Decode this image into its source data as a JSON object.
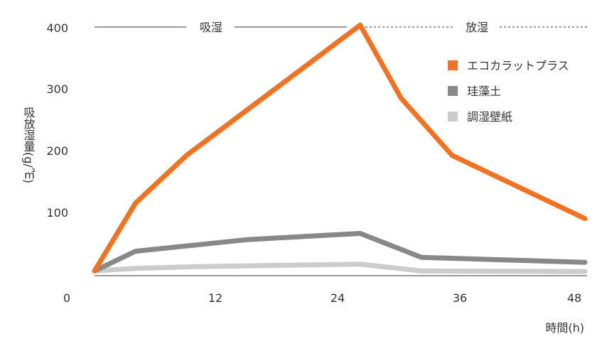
{
  "chart_data": {
    "type": "line",
    "xlabel": "時間(h)",
    "ylabel": "吸放湿量(g/㎡)",
    "x_ticks": [
      "0",
      "12",
      "24",
      "36",
      "48"
    ],
    "y_ticks": [
      "400",
      "300",
      "200",
      "100"
    ],
    "xlim": [
      0,
      48
    ],
    "ylim": [
      0,
      400
    ],
    "grid": false,
    "legend_position": "top-right",
    "phases": [
      {
        "label": "吸湿",
        "x_start": 0,
        "x_end": 26,
        "style": "solid"
      },
      {
        "label": "放湿",
        "x_start": 26,
        "x_end": 48,
        "style": "dashed"
      }
    ],
    "series": [
      {
        "name": "エコカラットプラス",
        "color": "#F07222",
        "x": [
          0,
          4,
          9,
          26,
          30,
          35,
          48
        ],
        "y": [
          2,
          112,
          190,
          402,
          283,
          190,
          87
        ]
      },
      {
        "name": "珪藻土",
        "color": "#888888",
        "x": [
          0,
          4,
          15,
          26,
          32,
          48
        ],
        "y": [
          2,
          34,
          53,
          63,
          24,
          16
        ]
      },
      {
        "name": "調湿壁紙",
        "color": "#CCCCCC",
        "x": [
          0,
          4,
          10,
          26,
          32,
          48
        ],
        "y": [
          2,
          6,
          9,
          13,
          2,
          1
        ]
      }
    ]
  }
}
